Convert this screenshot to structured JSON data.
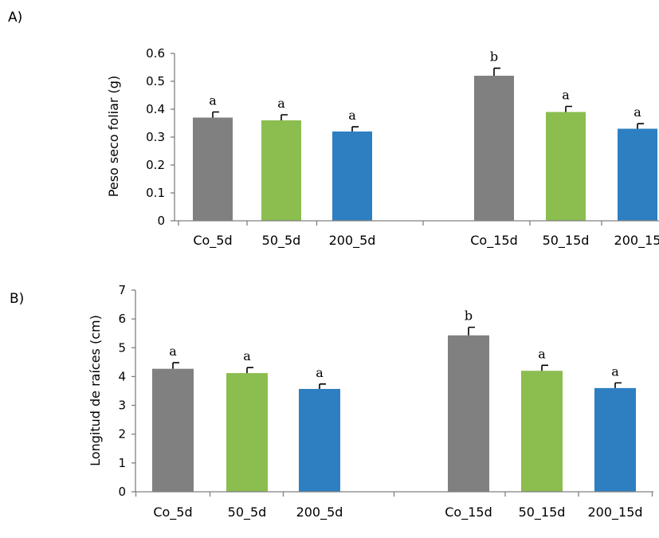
{
  "chart_data": [
    {
      "type": "bar",
      "panel_label": "A)",
      "title": "",
      "xlabel": "",
      "ylabel": "Peso seco foliar (g)",
      "ylim": [
        0,
        0.6
      ],
      "yticks": [
        "0",
        "0.1",
        "0.2",
        "0.3",
        "0.4",
        "0.5",
        "0.6"
      ],
      "ytick_values": [
        0,
        0.1,
        0.2,
        0.3,
        0.4,
        0.5,
        0.6
      ],
      "categories": [
        "Co_5d",
        "50_5d",
        "200_5d",
        "Co_15d",
        "50_15d",
        "200_15"
      ],
      "values": [
        0.37,
        0.36,
        0.32,
        0.52,
        0.39,
        0.33
      ],
      "errors": [
        0.02,
        0.02,
        0.017,
        0.027,
        0.02,
        0.018
      ],
      "significance": [
        "a",
        "a",
        "a",
        "b",
        "a",
        "a"
      ],
      "colors": [
        "#808080",
        "#8cbd4f",
        "#2e7fc2",
        "#808080",
        "#8cbd4f",
        "#2e7fc2"
      ],
      "grid": false
    },
    {
      "type": "bar",
      "panel_label": "B)",
      "title": "",
      "xlabel": "",
      "ylabel": "Longitud de raíces (cm)",
      "ylim": [
        0,
        7
      ],
      "yticks": [
        "0",
        "1",
        "2",
        "3",
        "4",
        "5",
        "6",
        "7"
      ],
      "ytick_values": [
        0,
        1,
        2,
        3,
        4,
        5,
        6,
        7
      ],
      "categories": [
        "Co_5d",
        "50_5d",
        "200_5d",
        "Co_15d",
        "50_15d",
        "200_15d"
      ],
      "values": [
        4.27,
        4.12,
        3.57,
        5.43,
        4.2,
        3.6
      ],
      "errors": [
        0.21,
        0.19,
        0.17,
        0.28,
        0.19,
        0.18
      ],
      "significance": [
        "a",
        "a",
        "a",
        "b",
        "a",
        "a"
      ],
      "colors": [
        "#808080",
        "#8cbd4f",
        "#2e7fc2",
        "#808080",
        "#8cbd4f",
        "#2e7fc2"
      ],
      "grid": false
    }
  ]
}
